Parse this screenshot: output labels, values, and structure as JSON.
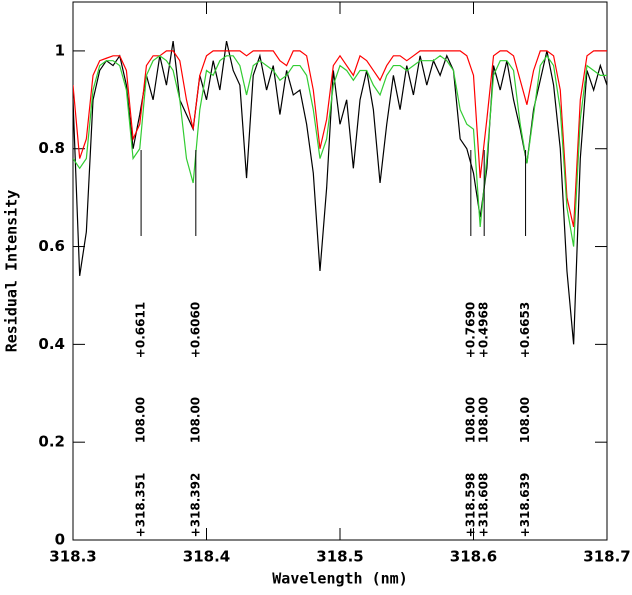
{
  "chart_data": {
    "type": "line",
    "xlabel": "Wavelength (nm)",
    "ylabel": "Residual Intensity",
    "x": [
      318.3,
      318.305,
      318.31,
      318.315,
      318.32,
      318.325,
      318.33,
      318.335,
      318.34,
      318.345,
      318.35,
      318.355,
      318.36,
      318.365,
      318.37,
      318.375,
      318.38,
      318.385,
      318.39,
      318.395,
      318.4,
      318.405,
      318.41,
      318.415,
      318.42,
      318.425,
      318.43,
      318.435,
      318.44,
      318.445,
      318.45,
      318.455,
      318.46,
      318.465,
      318.47,
      318.475,
      318.48,
      318.485,
      318.49,
      318.495,
      318.5,
      318.505,
      318.51,
      318.515,
      318.52,
      318.525,
      318.53,
      318.535,
      318.54,
      318.545,
      318.55,
      318.555,
      318.56,
      318.565,
      318.57,
      318.575,
      318.58,
      318.585,
      318.59,
      318.595,
      318.6,
      318.605,
      318.61,
      318.615,
      318.62,
      318.625,
      318.63,
      318.635,
      318.64,
      318.645,
      318.65,
      318.655,
      318.66,
      318.665,
      318.67,
      318.675,
      318.68,
      318.685,
      318.69,
      318.695,
      318.7
    ],
    "series": [
      {
        "color": "#000000",
        "values": [
          0.9,
          0.54,
          0.63,
          0.9,
          0.96,
          0.98,
          0.97,
          0.99,
          0.93,
          0.8,
          0.87,
          0.95,
          0.9,
          0.99,
          0.93,
          1.02,
          0.9,
          0.87,
          0.84,
          0.95,
          0.9,
          0.98,
          0.92,
          1.02,
          0.96,
          0.93,
          0.74,
          0.95,
          0.99,
          0.92,
          0.97,
          0.87,
          0.96,
          0.91,
          0.92,
          0.85,
          0.75,
          0.55,
          0.72,
          0.96,
          0.85,
          0.9,
          0.76,
          0.9,
          0.96,
          0.88,
          0.73,
          0.85,
          0.95,
          0.88,
          0.97,
          0.91,
          0.99,
          0.93,
          0.98,
          0.95,
          0.99,
          0.96,
          0.82,
          0.8,
          0.75,
          0.66,
          0.76,
          0.97,
          0.92,
          0.98,
          0.9,
          0.84,
          0.77,
          0.88,
          0.94,
          1.0,
          0.93,
          0.8,
          0.55,
          0.4,
          0.78,
          0.96,
          0.92,
          0.97,
          0.93
        ]
      },
      {
        "color": "#ff0000",
        "values": [
          0.93,
          0.78,
          0.82,
          0.95,
          0.98,
          0.985,
          0.99,
          0.99,
          0.96,
          0.82,
          0.85,
          0.97,
          0.99,
          0.99,
          1,
          1,
          0.98,
          0.9,
          0.84,
          0.95,
          0.99,
          1,
          1,
          1,
          1,
          1,
          0.99,
          1,
          1,
          1,
          1,
          0.98,
          0.97,
          1,
          1,
          0.99,
          0.92,
          0.8,
          0.86,
          0.97,
          0.99,
          0.97,
          0.95,
          0.99,
          0.98,
          0.96,
          0.94,
          0.97,
          0.99,
          0.99,
          0.98,
          0.99,
          1,
          1,
          1,
          1,
          1,
          1,
          1,
          0.99,
          0.95,
          0.74,
          0.86,
          0.99,
          1,
          1,
          0.99,
          0.94,
          0.89,
          0.96,
          1,
          1,
          0.99,
          0.92,
          0.7,
          0.64,
          0.9,
          0.99,
          1,
          1,
          1
        ]
      },
      {
        "color": "#33cc33",
        "values": [
          0.78,
          0.76,
          0.78,
          0.92,
          0.97,
          0.98,
          0.98,
          0.97,
          0.92,
          0.78,
          0.8,
          0.95,
          0.98,
          0.99,
          0.98,
          0.96,
          0.9,
          0.78,
          0.73,
          0.88,
          0.96,
          0.95,
          0.98,
          0.99,
          0.99,
          0.97,
          0.91,
          0.97,
          0.98,
          0.97,
          0.96,
          0.94,
          0.95,
          0.97,
          0.97,
          0.95,
          0.88,
          0.78,
          0.82,
          0.93,
          0.97,
          0.96,
          0.94,
          0.96,
          0.96,
          0.93,
          0.91,
          0.95,
          0.97,
          0.97,
          0.96,
          0.97,
          0.98,
          0.98,
          0.98,
          0.99,
          0.98,
          0.96,
          0.88,
          0.85,
          0.84,
          0.64,
          0.78,
          0.95,
          0.98,
          0.98,
          0.96,
          0.85,
          0.77,
          0.87,
          0.97,
          0.99,
          0.97,
          0.88,
          0.68,
          0.6,
          0.86,
          0.97,
          0.96,
          0.95,
          0.95
        ]
      }
    ],
    "annotations": [
      {
        "x": 318.351,
        "label": "+318.351",
        "strength": "108.00",
        "shift": "+0.6611"
      },
      {
        "x": 318.392,
        "label": "+318.392",
        "strength": "108.00",
        "shift": "+0.6060"
      },
      {
        "x": 318.598,
        "label": "+318.598",
        "strength": "108.00",
        "shift": "+0.7690"
      },
      {
        "x": 318.608,
        "label": "+318.608",
        "strength": "108.00",
        "shift": "+0.4968"
      },
      {
        "x": 318.639,
        "label": "+318.639",
        "strength": "108.00",
        "shift": "+0.6653"
      }
    ],
    "xlim": [
      318.3,
      318.7
    ],
    "xticks": [
      318.3,
      318.4,
      318.5,
      318.6,
      318.7
    ],
    "ylim": [
      0,
      1.1
    ],
    "yticks": [
      0,
      0.2,
      0.4,
      0.6,
      0.8,
      1
    ]
  }
}
